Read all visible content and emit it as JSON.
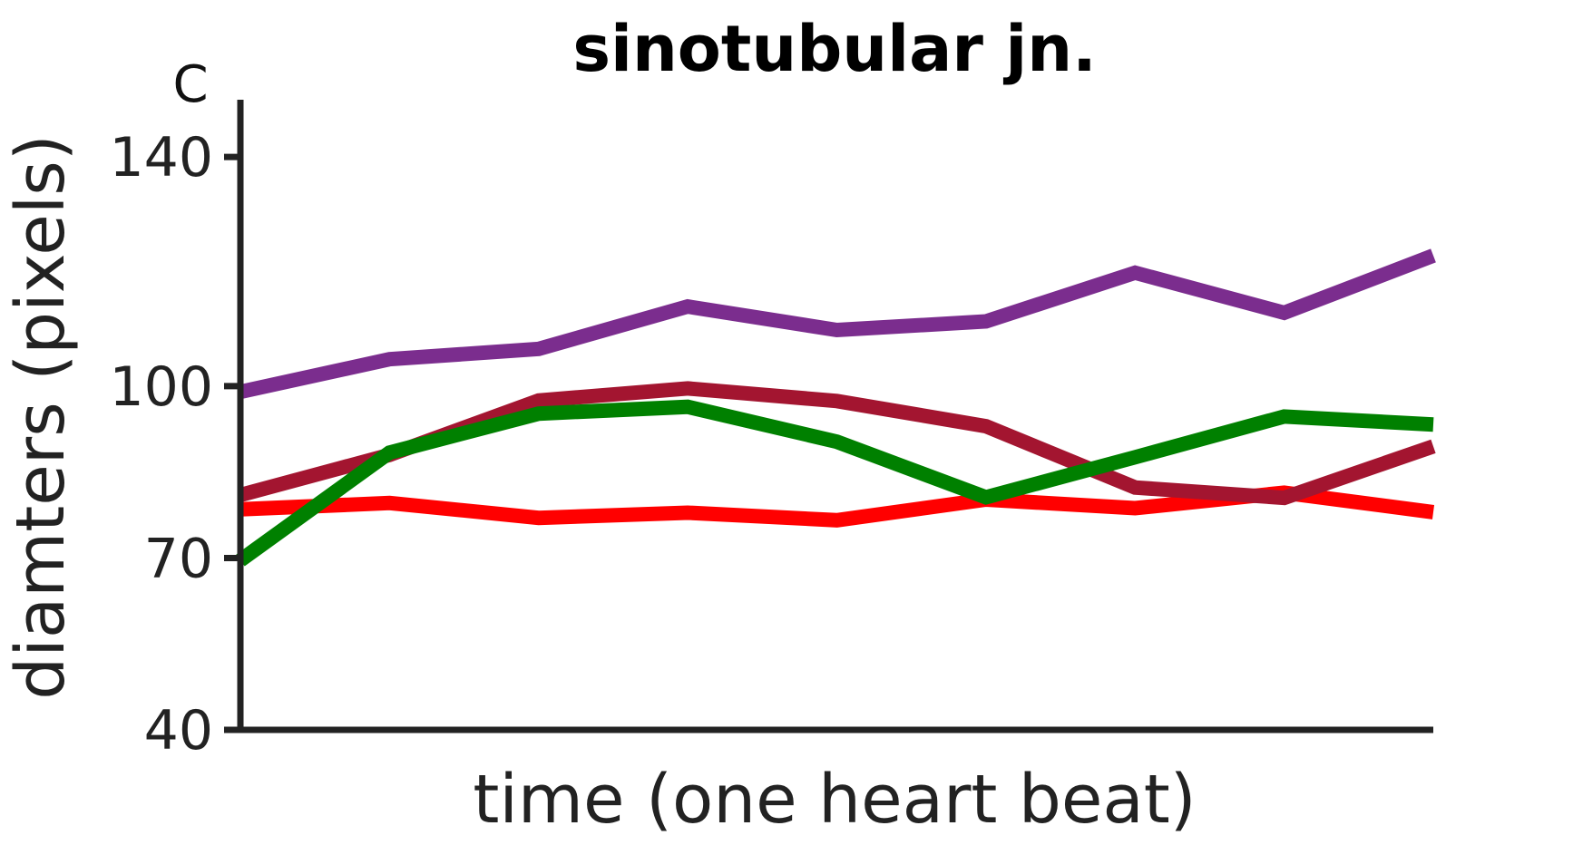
{
  "chart_data": {
    "type": "line",
    "title": "sinotubular jn.",
    "panel_label": "C",
    "xlabel": "time (one heart beat)",
    "ylabel": "diamters (pixels)",
    "ylim": [
      40,
      150
    ],
    "yticks": [
      40,
      70,
      100,
      140
    ],
    "x": [
      1,
      2,
      3,
      4,
      5,
      6,
      7,
      8,
      9
    ],
    "xlim": [
      1,
      9
    ],
    "grid": false,
    "series": [
      {
        "color": "#ff0000",
        "values": [
          78.5,
          79.6,
          77.0,
          77.9,
          76.6,
          80.2,
          78.7,
          81.4,
          78.0
        ]
      },
      {
        "color": "#a31530",
        "values": [
          81.0,
          88.0,
          97.5,
          99.6,
          97.4,
          93.0,
          82.3,
          80.5,
          89.5
        ]
      },
      {
        "color": "#7b2d8e",
        "values": [
          99.0,
          104.7,
          106.5,
          113.9,
          109.8,
          111.3,
          119.8,
          112.8,
          122.8
        ]
      },
      {
        "color": "#008000",
        "values": [
          69.6,
          88.4,
          95.2,
          96.4,
          90.3,
          80.6,
          87.6,
          94.7,
          93.3
        ]
      }
    ]
  }
}
